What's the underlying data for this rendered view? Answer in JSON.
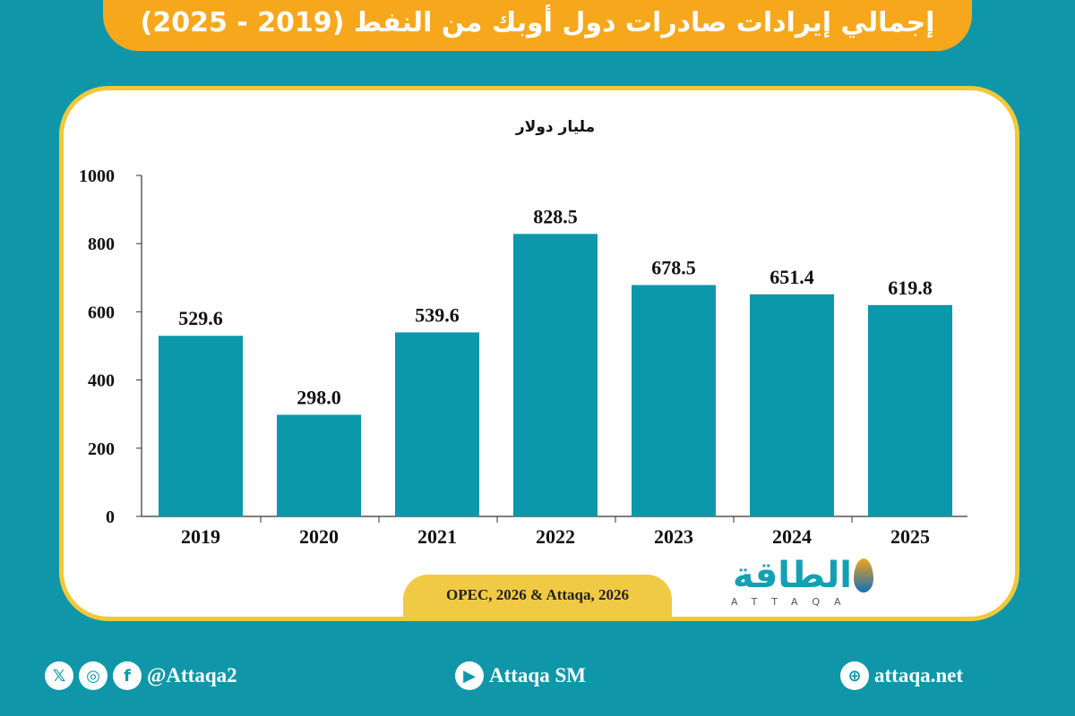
{
  "title": "إجمالي إيرادات صادرات دول أوبك من النفط (2019 - 2025)",
  "source": "OPEC, 2026 & Attaqa, 2026",
  "logo": {
    "arabic": "الطاقة",
    "latin": "ATTAQA"
  },
  "colors": {
    "background": "#0f97a9",
    "title_bar": "#f7a71c",
    "card_border": "#f1c83a",
    "bar": "#0a98aa"
  },
  "footer": {
    "social_handle": "@Attaqa2",
    "social_icons": [
      "x-icon",
      "instagram-icon",
      "facebook-icon"
    ],
    "youtube": "Attaqa SM",
    "website": "attaqa.net"
  },
  "chart_data": {
    "type": "bar",
    "ylabel": "مليار دولار",
    "categories": [
      "2019",
      "2020",
      "2021",
      "2022",
      "2023",
      "2024",
      "2025"
    ],
    "values": [
      529.6,
      298.0,
      539.6,
      828.5,
      678.5,
      651.4,
      619.8
    ],
    "data_labels": [
      "529.6",
      "298.0",
      "539.6",
      "828.5",
      "678.5",
      "651.4",
      "619.8"
    ],
    "ylim": [
      0,
      1000
    ],
    "yticks": [
      0,
      200,
      400,
      600,
      800,
      1000
    ],
    "grid": false
  }
}
